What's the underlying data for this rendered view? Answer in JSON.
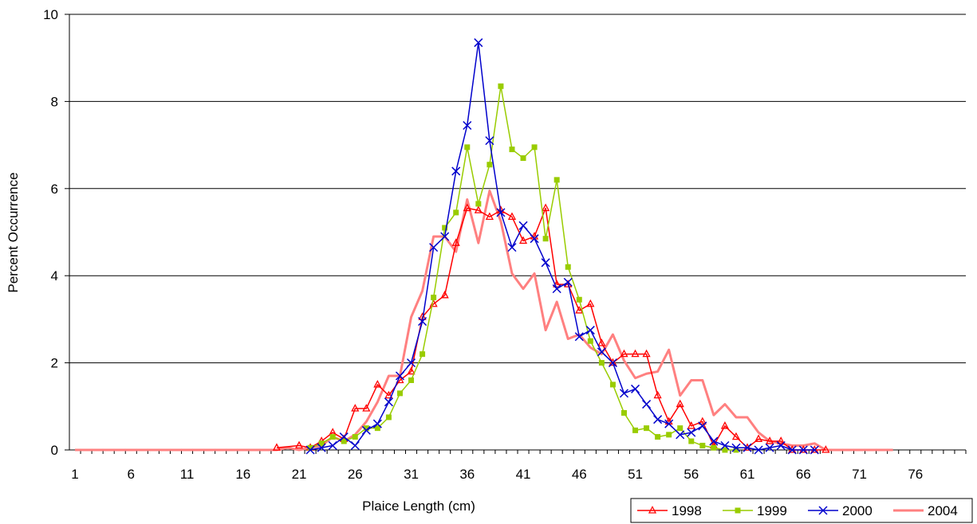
{
  "chart_data": {
    "type": "line",
    "title": "",
    "xlabel": "Plaice Length (cm)",
    "ylabel": "Percent Occurrence",
    "ylim": [
      0,
      10
    ],
    "yticks": [
      0,
      2,
      4,
      6,
      8,
      10
    ],
    "xlim": [
      1,
      80
    ],
    "xticks": [
      1,
      6,
      11,
      16,
      21,
      26,
      31,
      36,
      41,
      46,
      51,
      56,
      61,
      66,
      71,
      76
    ],
    "grid": "horizontal",
    "legend_position": "bottom-right",
    "series": [
      {
        "name": "1998",
        "color": "#ff0000",
        "marker": "triangle",
        "line_width": 1.5,
        "x": [
          19,
          21,
          22,
          23,
          24,
          25,
          26,
          27,
          28,
          29,
          30,
          31,
          32,
          33,
          34,
          35,
          36,
          37,
          38,
          39,
          40,
          41,
          42,
          43,
          44,
          45,
          46,
          47,
          48,
          49,
          50,
          51,
          52,
          53,
          54,
          55,
          56,
          57,
          58,
          59,
          60,
          61,
          62,
          63,
          64,
          65,
          66,
          67,
          68
        ],
        "y": [
          0.05,
          0.1,
          0.05,
          0.2,
          0.4,
          0.25,
          0.95,
          0.95,
          1.5,
          1.25,
          1.6,
          1.8,
          3.05,
          3.35,
          3.55,
          4.75,
          5.55,
          5.5,
          5.35,
          5.5,
          5.35,
          4.8,
          4.9,
          5.55,
          3.8,
          3.8,
          3.2,
          3.35,
          2.45,
          2.0,
          2.2,
          2.2,
          2.2,
          1.25,
          0.65,
          1.05,
          0.55,
          0.65,
          0.1,
          0.55,
          0.3,
          0.05,
          0.25,
          0.2,
          0.2,
          0.0,
          0.0,
          0.0,
          0.0
        ]
      },
      {
        "name": "1999",
        "color": "#99cc00",
        "marker": "square",
        "line_width": 1.5,
        "x": [
          22,
          23,
          24,
          25,
          26,
          27,
          28,
          29,
          30,
          31,
          32,
          33,
          34,
          35,
          36,
          37,
          38,
          39,
          40,
          41,
          42,
          43,
          44,
          45,
          46,
          47,
          48,
          49,
          50,
          51,
          52,
          53,
          54,
          55,
          56,
          57,
          58,
          59,
          60
        ],
        "y": [
          0.05,
          0.15,
          0.3,
          0.2,
          0.3,
          0.5,
          0.5,
          0.75,
          1.3,
          1.6,
          2.2,
          3.5,
          5.1,
          5.45,
          6.95,
          5.65,
          6.55,
          8.35,
          6.9,
          6.7,
          6.95,
          4.85,
          6.2,
          4.2,
          3.45,
          2.5,
          2.0,
          1.5,
          0.85,
          0.45,
          0.5,
          0.3,
          0.35,
          0.5,
          0.2,
          0.1,
          0.05,
          0.0,
          0.0
        ]
      },
      {
        "name": "2000",
        "color": "#0000cc",
        "marker": "x",
        "line_width": 1.5,
        "x": [
          22,
          23,
          24,
          25,
          26,
          27,
          28,
          29,
          30,
          31,
          32,
          33,
          34,
          35,
          36,
          37,
          38,
          39,
          40,
          41,
          42,
          43,
          44,
          45,
          46,
          47,
          48,
          49,
          50,
          51,
          52,
          53,
          54,
          55,
          56,
          57,
          58,
          59,
          60,
          61,
          62,
          63,
          64,
          65,
          66,
          67
        ],
        "y": [
          0.0,
          0.05,
          0.1,
          0.3,
          0.1,
          0.45,
          0.6,
          1.1,
          1.7,
          2.0,
          2.95,
          4.65,
          4.9,
          6.4,
          7.45,
          9.35,
          7.1,
          5.45,
          4.65,
          5.15,
          4.85,
          4.3,
          3.7,
          3.85,
          2.6,
          2.75,
          2.25,
          2.0,
          1.3,
          1.4,
          1.05,
          0.7,
          0.6,
          0.35,
          0.4,
          0.55,
          0.2,
          0.1,
          0.05,
          0.05,
          0.0,
          0.05,
          0.1,
          0.0,
          0.0,
          0.0
        ]
      },
      {
        "name": "2004",
        "color": "#ff8080",
        "marker": "none",
        "line_width": 3,
        "x": [
          1,
          10,
          17,
          18,
          19,
          20,
          21,
          22,
          23,
          24,
          25,
          26,
          27,
          28,
          29,
          30,
          31,
          32,
          33,
          34,
          35,
          36,
          37,
          38,
          39,
          40,
          41,
          42,
          43,
          44,
          45,
          46,
          47,
          48,
          49,
          50,
          51,
          52,
          53,
          54,
          55,
          56,
          57,
          58,
          59,
          60,
          61,
          62,
          63,
          64,
          65,
          66,
          67,
          68,
          69,
          70,
          71,
          72,
          73,
          74
        ],
        "y": [
          0.0,
          0.0,
          0.0,
          0.0,
          0.0,
          0.05,
          0.0,
          0.05,
          0.1,
          0.3,
          0.2,
          0.35,
          0.65,
          1.1,
          1.7,
          1.7,
          3.05,
          3.65,
          4.9,
          4.9,
          4.55,
          5.75,
          4.75,
          5.95,
          5.25,
          4.05,
          3.7,
          4.05,
          2.75,
          3.4,
          2.55,
          2.65,
          2.35,
          2.2,
          2.65,
          2.05,
          1.65,
          1.75,
          1.8,
          2.3,
          1.25,
          1.6,
          1.6,
          0.8,
          1.05,
          0.75,
          0.75,
          0.4,
          0.2,
          0.15,
          0.1,
          0.1,
          0.15,
          0.0,
          0.0,
          0.0,
          0.0,
          0.0,
          0.0,
          0.0
        ]
      }
    ]
  }
}
